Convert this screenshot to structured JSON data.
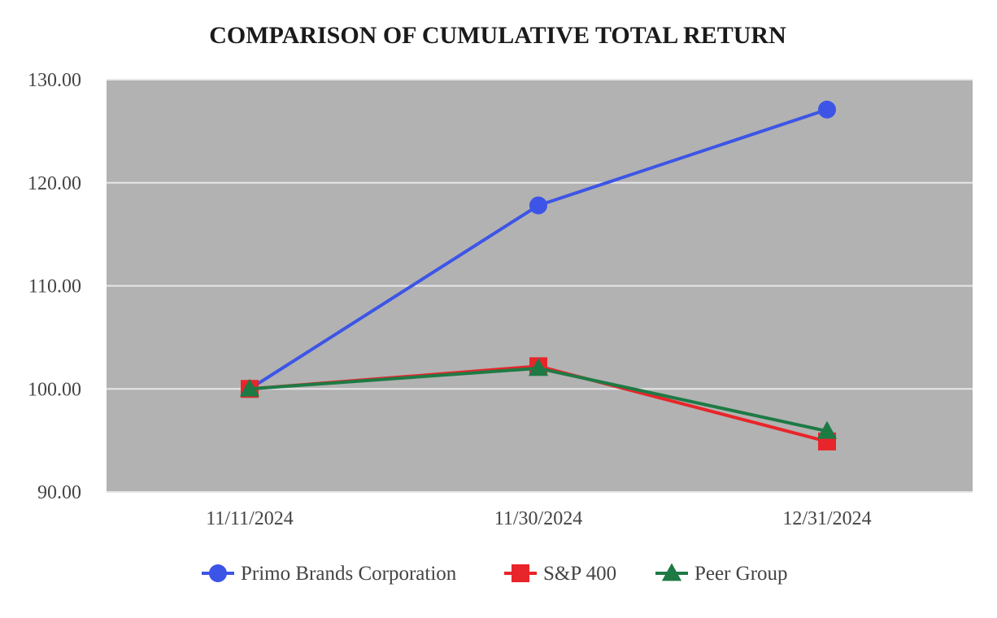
{
  "chart_data": {
    "type": "line",
    "title": "COMPARISON OF CUMULATIVE TOTAL RETURN",
    "xlabel": "",
    "ylabel": "",
    "categories": [
      "11/11/2024",
      "11/30/2024",
      "12/31/2024"
    ],
    "yticks": [
      "90.00",
      "100.00",
      "110.00",
      "120.00",
      "130.00"
    ],
    "ylim": [
      90,
      130
    ],
    "grid": true,
    "legend_position": "bottom",
    "plot_background": "#b2b2b2",
    "series": [
      {
        "name": "Primo Brands Corporation",
        "values": [
          100.0,
          117.8,
          127.1
        ],
        "color": "#3d55e6",
        "marker": "circle"
      },
      {
        "name": "S&P 400",
        "values": [
          100.0,
          102.2,
          94.9
        ],
        "color": "#e8252a",
        "marker": "square"
      },
      {
        "name": "Peer Group",
        "values": [
          100.0,
          102.0,
          95.9
        ],
        "color": "#1e7a45",
        "marker": "triangle"
      }
    ]
  }
}
